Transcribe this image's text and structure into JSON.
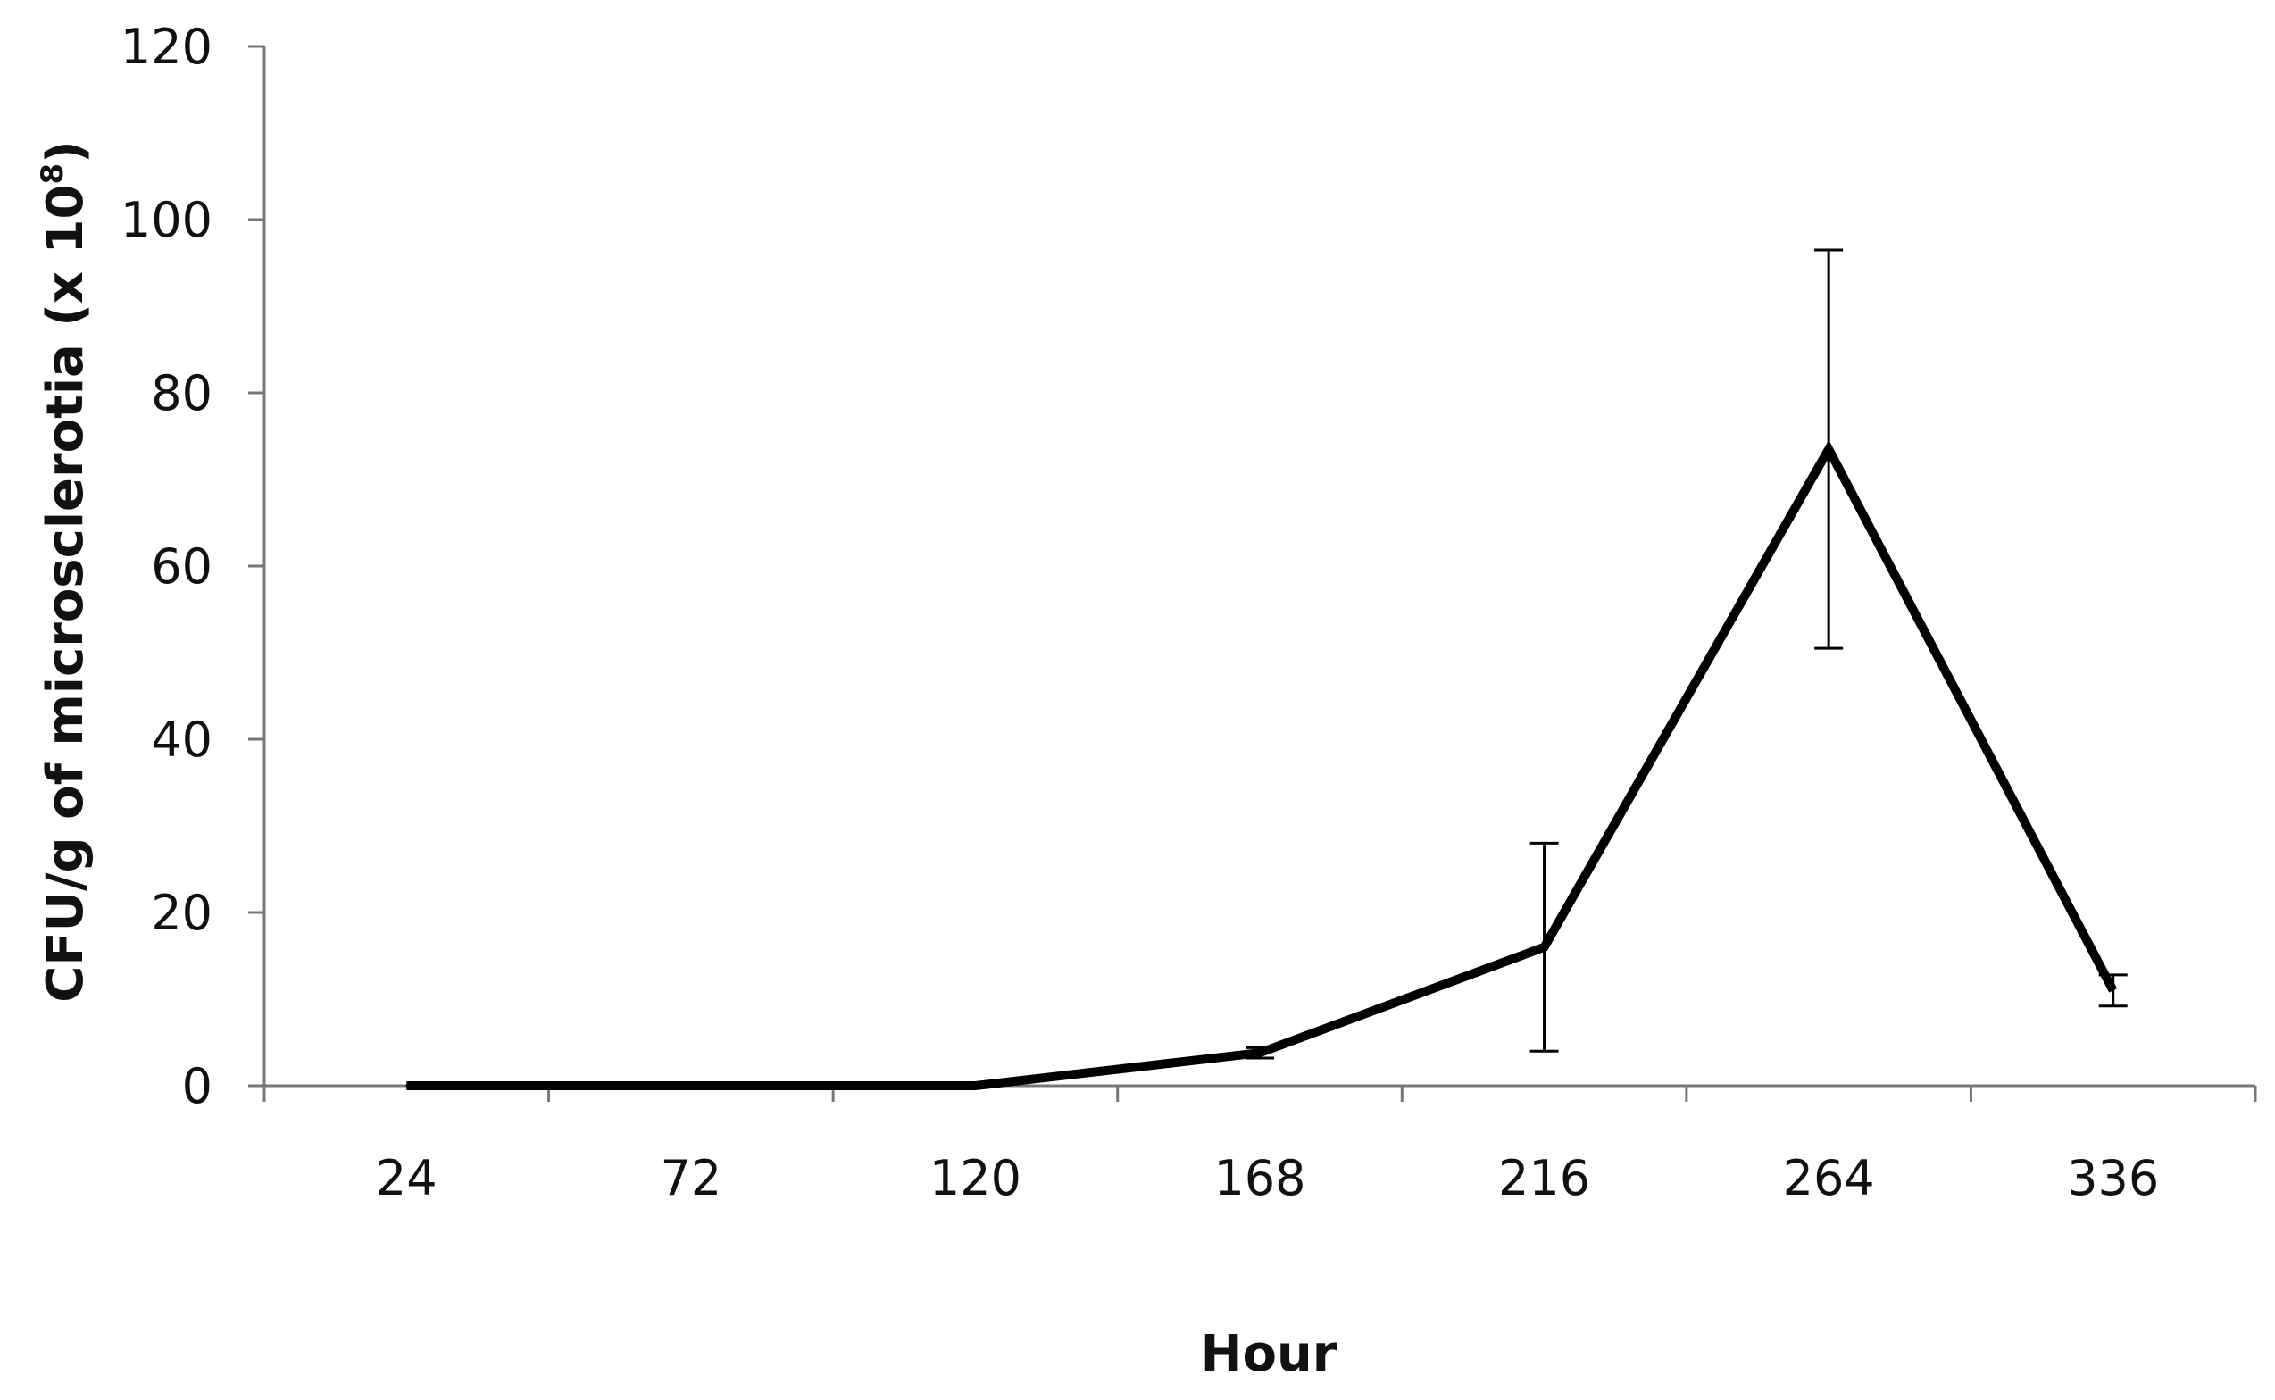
{
  "chart_data": {
    "type": "line",
    "title": "",
    "xlabel": "Hour",
    "ylabel_main": "CFU/g of microsclerotia (x 10",
    "ylabel_sup": "8",
    "ylabel_end": ")",
    "categories": [
      "24",
      "72",
      "120",
      "168",
      "216",
      "264",
      "336"
    ],
    "series": [
      {
        "values": [
          0,
          0,
          0,
          3.8,
          16,
          73.5,
          11
        ],
        "error": [
          0,
          0,
          0,
          0.6,
          12,
          23,
          1.8
        ]
      }
    ],
    "ylim": [
      0,
      120
    ],
    "yticks": [
      0,
      20,
      40,
      60,
      80,
      100,
      120
    ],
    "grid": false,
    "legend": "none",
    "line_color": "#000000"
  }
}
